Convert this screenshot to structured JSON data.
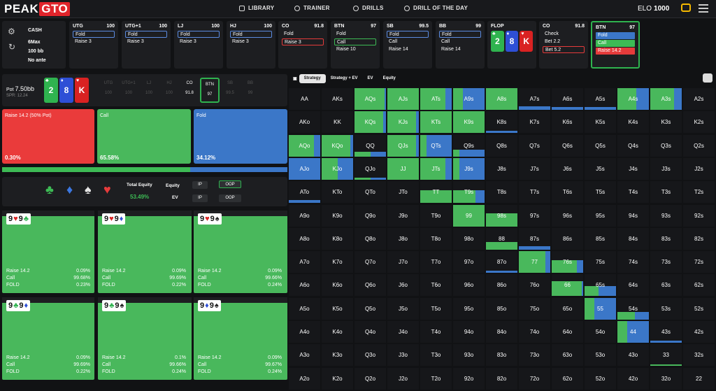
{
  "brand": {
    "name": "PEAK",
    "accent": "GTO"
  },
  "nav": {
    "library": "LIBRARY",
    "trainer": "TRAINER",
    "drills": "DRILLS",
    "drill_of_day": "DRILL OF THE DAY",
    "elo_label": "ELO",
    "elo_value": "1000"
  },
  "setup": {
    "game": "CASH",
    "table": "6Max",
    "stack": "100 bb",
    "ante": "No ante"
  },
  "positions": [
    {
      "name": "UTG",
      "stack": "100",
      "actions": [
        "Fold",
        "Raise 3"
      ]
    },
    {
      "name": "UTG+1",
      "stack": "100",
      "actions": [
        "Fold",
        "Raise 3"
      ]
    },
    {
      "name": "LJ",
      "stack": "100",
      "actions": [
        "Fold",
        "Raise 3"
      ]
    },
    {
      "name": "HJ",
      "stack": "100",
      "actions": [
        "Fold",
        "Raise 3"
      ]
    },
    {
      "name": "CO",
      "stack": "91.8",
      "actions": [
        "Fold",
        "Raise 3"
      ]
    },
    {
      "name": "BTN",
      "stack": "97",
      "actions": [
        "Fold",
        "Call",
        "Raise 10"
      ]
    },
    {
      "name": "SB",
      "stack": "99.5",
      "actions": [
        "Fold",
        "Call",
        "Raise 14"
      ]
    },
    {
      "name": "BB",
      "stack": "99",
      "actions": [
        "Fold",
        "Call",
        "Raise 14"
      ]
    }
  ],
  "flop": {
    "title": "FLOP",
    "cards": [
      {
        "rank": "2",
        "suit": "♣",
        "color": "#2fb34f"
      },
      {
        "rank": "8",
        "suit": "♦",
        "color": "#2e4fd6"
      },
      {
        "rank": "K",
        "suit": "♥",
        "color": "#d92222"
      }
    ]
  },
  "co_action": {
    "name": "CO",
    "stack": "91.8",
    "actions": [
      "Check",
      "Bet 2.2",
      "Bet 5.2"
    ]
  },
  "btn_action": {
    "name": "BTN",
    "stack": "97",
    "actions": [
      "Fold",
      "Call",
      "Raise 14.2"
    ]
  },
  "pot": {
    "label": "Pot",
    "value": "7.50bb",
    "spr": "SPR: 12.24"
  },
  "mini_seats": [
    {
      "n": "UTG",
      "s": "100"
    },
    {
      "n": "UTG+1",
      "s": "100"
    },
    {
      "n": "LJ",
      "s": "100"
    },
    {
      "n": "HJ",
      "s": "100"
    },
    {
      "n": "CO",
      "s": "91.8"
    },
    {
      "n": "BTN",
      "s": "97"
    },
    {
      "n": "SB",
      "s": "99.5"
    },
    {
      "n": "BB",
      "s": "99"
    }
  ],
  "strategy": [
    {
      "label": "Raise 14.2 (50% Pot)",
      "pct": "0.30%",
      "color": "#ea3b3b"
    },
    {
      "label": "Call",
      "pct": "65.58%",
      "color": "#49b85c"
    },
    {
      "label": "Fold",
      "pct": "34.12%",
      "color": "#3b77c8"
    }
  ],
  "progress": {
    "call_frac": 0.6588
  },
  "equity": {
    "total_label": "Total Equity",
    "total_value": "53.49%",
    "equity_label": "Equity",
    "ev_label": "EV",
    "ip": "IP",
    "oop": "OOP"
  },
  "suits": [
    {
      "s": "♣",
      "c": "#3dbb55"
    },
    {
      "s": "♦",
      "c": "#3b77e0"
    },
    {
      "s": "♠",
      "c": "#e6e6e6"
    },
    {
      "s": "♥",
      "c": "#e63b3b"
    }
  ],
  "combos": [
    {
      "hand": [
        "9",
        "♥",
        "9",
        "♣"
      ],
      "raise": "0.09%",
      "call": "99.68%",
      "fold": "0.23%"
    },
    {
      "hand": [
        "9",
        "♥",
        "9",
        "♦"
      ],
      "raise": "0.09%",
      "call": "99.69%",
      "fold": "0.22%"
    },
    {
      "hand": [
        "9",
        "♥",
        "9",
        "♠"
      ],
      "raise": "0.09%",
      "call": "99.66%",
      "fold": "0.24%"
    },
    {
      "hand": [
        "9",
        "♣",
        "9",
        "♦"
      ],
      "raise": "0.09%",
      "call": "99.69%",
      "fold": "0.22%"
    },
    {
      "hand": [
        "9",
        "♣",
        "9",
        "♠"
      ],
      "raise": "0.1%",
      "call": "99.66%",
      "fold": "0.24%"
    },
    {
      "hand": [
        "9",
        "♦",
        "9",
        "♠"
      ],
      "raise": "0.09%",
      "call": "99.67%",
      "fold": "0.24%"
    }
  ],
  "combo_labels": {
    "raise": "Raise 14.2",
    "call": "Call",
    "fold": "FOLD"
  },
  "tabs": [
    "Strategy",
    "Strategy + EV",
    "EV",
    "Equity"
  ],
  "grid": [
    [
      "AA",
      "AKs",
      "AQs",
      "AJs",
      "ATs",
      "A9s",
      "A8s",
      "A7s",
      "A6s",
      "A5s",
      "A4s",
      "A3s",
      "A2s"
    ],
    [
      "AKo",
      "KK",
      "KQs",
      "KJs",
      "KTs",
      "K9s",
      "K8s",
      "K7s",
      "K6s",
      "K5s",
      "K4s",
      "K3s",
      "K2s"
    ],
    [
      "AQo",
      "KQo",
      "QQ",
      "QJs",
      "QTs",
      "Q9s",
      "Q8s",
      "Q7s",
      "Q6s",
      "Q5s",
      "Q4s",
      "Q3s",
      "Q2s"
    ],
    [
      "AJo",
      "KJo",
      "QJo",
      "JJ",
      "JTs",
      "J9s",
      "J8s",
      "J7s",
      "J6s",
      "J5s",
      "J4s",
      "J3s",
      "J2s"
    ],
    [
      "ATo",
      "KTo",
      "QTo",
      "JTo",
      "TT",
      "T9s",
      "T8s",
      "T7s",
      "T6s",
      "T5s",
      "T4s",
      "T3s",
      "T2s"
    ],
    [
      "A9o",
      "K9o",
      "Q9o",
      "J9o",
      "T9o",
      "99",
      "98s",
      "97s",
      "96s",
      "95s",
      "94s",
      "93s",
      "92s"
    ],
    [
      "A8o",
      "K8o",
      "Q8o",
      "J8o",
      "T8o",
      "98o",
      "88",
      "87s",
      "86s",
      "85s",
      "84s",
      "83s",
      "82s"
    ],
    [
      "A7o",
      "K7o",
      "Q7o",
      "J7o",
      "T7o",
      "97o",
      "87o",
      "77",
      "76s",
      "75s",
      "74s",
      "73s",
      "72s"
    ],
    [
      "A6o",
      "K6o",
      "Q6o",
      "J6o",
      "T6o",
      "96o",
      "86o",
      "76o",
      "66",
      "65s",
      "64s",
      "63s",
      "62s"
    ],
    [
      "A5o",
      "K5o",
      "Q5o",
      "J5o",
      "T5o",
      "95o",
      "85o",
      "75o",
      "65o",
      "55",
      "54s",
      "53s",
      "52s"
    ],
    [
      "A4o",
      "K4o",
      "Q4o",
      "J4o",
      "T4o",
      "94o",
      "84o",
      "74o",
      "64o",
      "54o",
      "44",
      "43s",
      "42s"
    ],
    [
      "A3o",
      "K3o",
      "Q3o",
      "J3o",
      "T3o",
      "93o",
      "83o",
      "73o",
      "63o",
      "53o",
      "43o",
      "33",
      "32s"
    ],
    [
      "A2o",
      "K2o",
      "Q2o",
      "J2o",
      "T2o",
      "92o",
      "82o",
      "72o",
      "62o",
      "52o",
      "42o",
      "32o",
      "22"
    ]
  ],
  "grid_fill": [
    [
      [
        0,
        0
      ],
      [
        0,
        0
      ],
      [
        0,
        0.95,
        1
      ],
      [
        0,
        1,
        1
      ],
      [
        0,
        0.8,
        1
      ],
      [
        0,
        0.3,
        1
      ],
      [
        0,
        1,
        1
      ],
      [
        0,
        0,
        0.15
      ],
      [
        0,
        0,
        0.12
      ],
      [
        0,
        0,
        0.12
      ],
      [
        0,
        0.6,
        1
      ],
      [
        0,
        0.75,
        1
      ],
      [
        0,
        0,
        0
      ]
    ],
    [
      [
        0,
        0
      ],
      [
        0,
        0
      ],
      [
        0,
        0.9,
        1
      ],
      [
        0,
        0.9,
        1
      ],
      [
        0,
        1,
        1
      ],
      [
        0,
        1,
        1
      ],
      [
        0,
        0,
        0.1
      ],
      [
        0,
        0,
        0
      ],
      [
        0,
        0,
        0
      ],
      [
        0,
        0,
        0
      ],
      [
        0,
        0,
        0
      ],
      [
        0,
        0,
        0
      ],
      [
        0,
        0,
        0
      ]
    ],
    [
      [
        0,
        0.8,
        1
      ],
      [
        0,
        0.9,
        1
      ],
      [
        0,
        0.5,
        0.2
      ],
      [
        0,
        0.9,
        1
      ],
      [
        0,
        0.2,
        1
      ],
      [
        0,
        0.2,
        0.3
      ],
      [
        0,
        0,
        0
      ],
      [
        0,
        0,
        0
      ],
      [
        0,
        0,
        0
      ],
      [
        0,
        0,
        0
      ],
      [
        0,
        0,
        0
      ],
      [
        0,
        0,
        0
      ],
      [
        0,
        0,
        0
      ]
    ],
    [
      [
        0,
        0,
        1
      ],
      [
        0,
        0.5,
        1
      ],
      [
        0,
        0.5,
        0.1
      ],
      [
        0,
        1,
        1
      ],
      [
        0,
        0.8,
        1
      ],
      [
        0,
        0.2,
        1
      ],
      [
        0,
        0,
        0
      ],
      [
        0,
        0,
        0
      ],
      [
        0,
        0,
        0
      ],
      [
        0,
        0,
        0
      ],
      [
        0,
        0,
        0
      ],
      [
        0,
        0,
        0
      ],
      [
        0,
        0,
        0
      ]
    ],
    [
      [
        0,
        0,
        0.15
      ],
      [
        0,
        0,
        0
      ],
      [
        0,
        0,
        0
      ],
      [
        0,
        0,
        0
      ],
      [
        0,
        1,
        0.6
      ],
      [
        0,
        0.7,
        0.6
      ],
      [
        0,
        0,
        0
      ],
      [
        0,
        0,
        0
      ],
      [
        0,
        0,
        0
      ],
      [
        0,
        0,
        0
      ],
      [
        0,
        0,
        0
      ],
      [
        0,
        0,
        0
      ],
      [
        0,
        0,
        0
      ]
    ],
    [
      [
        0,
        0,
        0
      ],
      [
        0,
        0,
        0
      ],
      [
        0,
        0,
        0
      ],
      [
        0,
        0,
        0
      ],
      [
        0,
        0,
        0
      ],
      [
        0,
        1,
        1
      ],
      [
        0,
        1,
        0.6
      ],
      [
        0,
        0,
        0
      ],
      [
        0,
        0,
        0
      ],
      [
        0,
        0,
        0
      ],
      [
        0,
        0,
        0
      ],
      [
        0,
        0,
        0
      ],
      [
        0,
        0,
        0
      ]
    ],
    [
      [
        0,
        0,
        0
      ],
      [
        0,
        0,
        0
      ],
      [
        0,
        0,
        0
      ],
      [
        0,
        0,
        0
      ],
      [
        0,
        0,
        0
      ],
      [
        0,
        0,
        0
      ],
      [
        0,
        1,
        0.35
      ],
      [
        0,
        0,
        0.15
      ],
      [
        0,
        0,
        0
      ],
      [
        0,
        0,
        0
      ],
      [
        0,
        0,
        0
      ],
      [
        0,
        0,
        0
      ],
      [
        0,
        0,
        0
      ]
    ],
    [
      [
        0,
        0,
        0
      ],
      [
        0,
        0,
        0
      ],
      [
        0,
        0,
        0
      ],
      [
        0,
        0,
        0
      ],
      [
        0,
        0,
        0
      ],
      [
        0,
        0,
        0
      ],
      [
        0,
        0,
        0.1
      ],
      [
        0,
        0.85,
        1
      ],
      [
        0,
        0.8,
        0.6
      ],
      [
        0,
        0,
        0
      ],
      [
        0,
        0,
        0
      ],
      [
        0,
        0,
        0
      ],
      [
        0,
        0,
        0
      ]
    ],
    [
      [
        0,
        0,
        0
      ],
      [
        0,
        0,
        0
      ],
      [
        0,
        0,
        0
      ],
      [
        0,
        0,
        0
      ],
      [
        0,
        0,
        0
      ],
      [
        0,
        0,
        0
      ],
      [
        0,
        0,
        0
      ],
      [
        0,
        0,
        0
      ],
      [
        0,
        0.95,
        0.7
      ],
      [
        0,
        0.45,
        0.45
      ],
      [
        0,
        0,
        0
      ],
      [
        0,
        0,
        0
      ],
      [
        0,
        0,
        0
      ]
    ],
    [
      [
        0,
        0,
        0
      ],
      [
        0,
        0,
        0
      ],
      [
        0,
        0,
        0
      ],
      [
        0,
        0,
        0
      ],
      [
        0,
        0,
        0
      ],
      [
        0,
        0,
        0
      ],
      [
        0,
        0,
        0
      ],
      [
        0,
        0,
        0
      ],
      [
        0,
        0,
        0
      ],
      [
        0,
        0.3,
        1
      ],
      [
        0,
        0.55,
        0.35
      ],
      [
        0,
        0,
        0
      ],
      [
        0,
        0,
        0
      ]
    ],
    [
      [
        0,
        0,
        0
      ],
      [
        0,
        0,
        0
      ],
      [
        0,
        0,
        0
      ],
      [
        0,
        0,
        0
      ],
      [
        0,
        0,
        0
      ],
      [
        0,
        0,
        0
      ],
      [
        0,
        0,
        0
      ],
      [
        0,
        0,
        0
      ],
      [
        0,
        0,
        0
      ],
      [
        0,
        0,
        0
      ],
      [
        0,
        0.3,
        1
      ],
      [
        0,
        0,
        0.1
      ],
      [
        0,
        0,
        0
      ]
    ],
    [
      [
        0,
        0,
        0
      ],
      [
        0,
        0,
        0
      ],
      [
        0,
        0,
        0
      ],
      [
        0,
        0,
        0
      ],
      [
        0,
        0,
        0
      ],
      [
        0,
        0,
        0
      ],
      [
        0,
        0,
        0
      ],
      [
        0,
        0,
        0
      ],
      [
        0,
        0,
        0
      ],
      [
        0,
        0,
        0
      ],
      [
        0,
        0,
        0
      ],
      [
        0,
        1,
        0.08
      ],
      [
        0,
        0,
        0
      ]
    ],
    [
      [
        0,
        0,
        0
      ],
      [
        0,
        0,
        0
      ],
      [
        0,
        0,
        0
      ],
      [
        0,
        0,
        0
      ],
      [
        0,
        0,
        0
      ],
      [
        0,
        0,
        0
      ],
      [
        0,
        0,
        0
      ],
      [
        0,
        0,
        0
      ],
      [
        0,
        0,
        0
      ],
      [
        0,
        0,
        0
      ],
      [
        0,
        0,
        0
      ],
      [
        0,
        0,
        0
      ],
      [
        0,
        0,
        0
      ]
    ]
  ],
  "colors": {
    "call": "#49b85c",
    "fold": "#3b77c8",
    "raise": "#ea3b3b",
    "panel": "#1d1e21",
    "active": "#2fb34f"
  }
}
